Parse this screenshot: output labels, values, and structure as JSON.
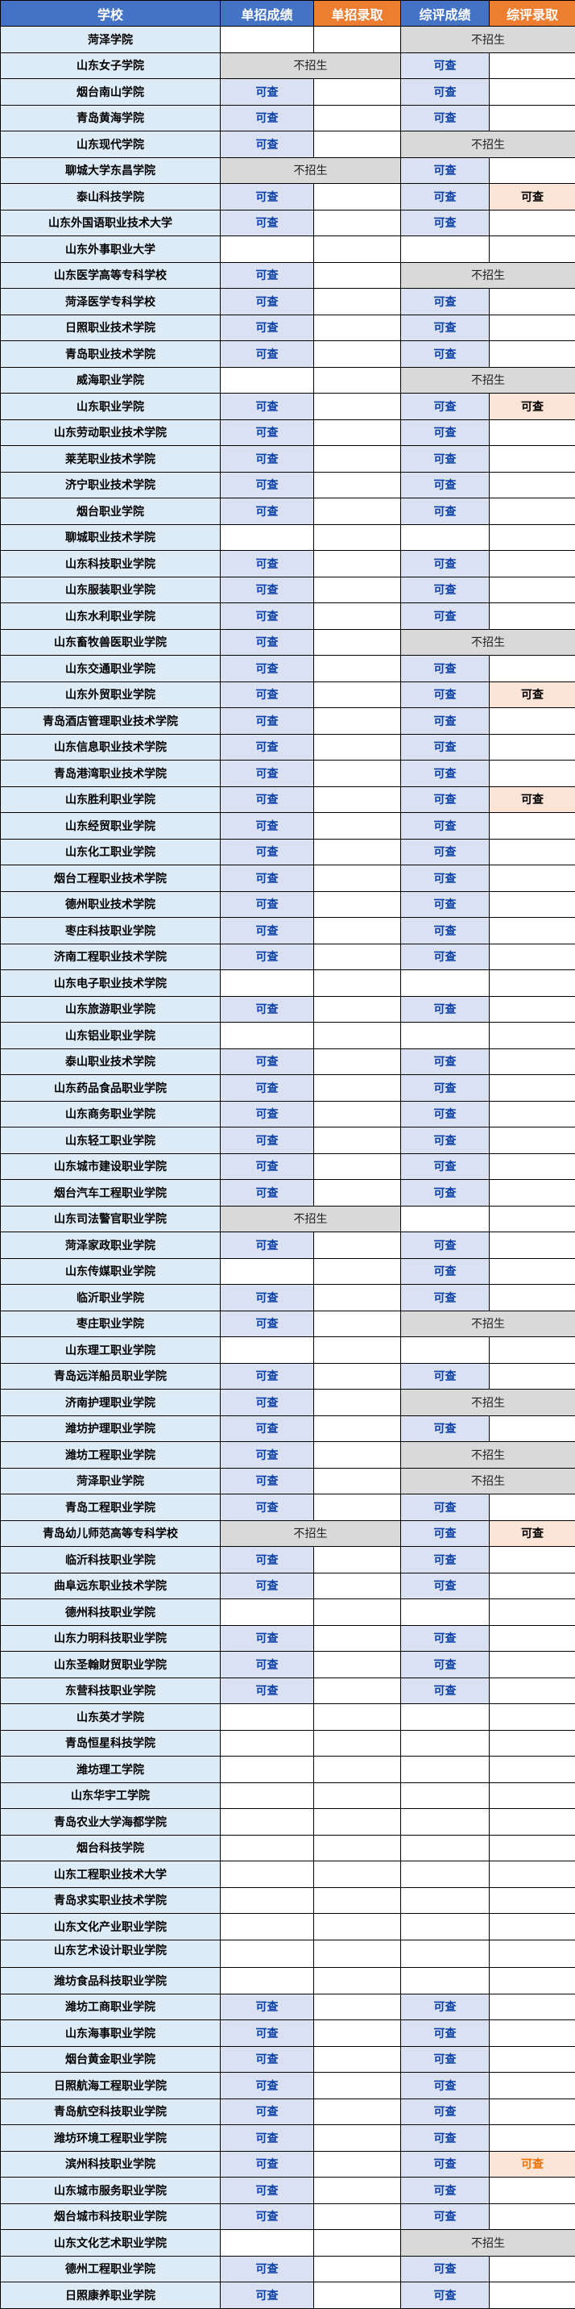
{
  "headers": {
    "school": "学校",
    "dz_score": "单招成绩",
    "dz_admit": "单招录取",
    "zp_score": "综评成绩",
    "zp_admit": "综评录取"
  },
  "labels": {
    "available": "可查",
    "not_enrolling": "不招生"
  },
  "colors": {
    "header_blue": "#4472C4",
    "header_orange": "#ED7D31",
    "name_bg": "#DDEBF7",
    "available_bg": "#D9E1F2",
    "available_text": "#0B3FA8",
    "not_enrolling_bg": "#D9D9D9",
    "admit_bg": "#FCE4D6",
    "admit_orange_text": "#F07000"
  },
  "legend_codes": {
    "Q": "可查",
    "N": "不招生 (merged)",
    "QA": "可查 + 录取可查",
    "QO": "可查 + 录取可查 (orange text)",
    "": "empty"
  },
  "rows": [
    {
      "n": "菏泽学院",
      "d": "",
      "z": "N"
    },
    {
      "n": "山东女子学院",
      "d": "N",
      "z": "Q"
    },
    {
      "n": "烟台南山学院",
      "d": "Q",
      "z": "Q"
    },
    {
      "n": "青岛黄海学院",
      "d": "Q",
      "z": "Q"
    },
    {
      "n": "山东现代学院",
      "d": "Q",
      "z": "N"
    },
    {
      "n": "聊城大学东昌学院",
      "d": "N",
      "z": "Q"
    },
    {
      "n": "泰山科技学院",
      "d": "Q",
      "z": "QA"
    },
    {
      "n": "山东外国语职业技术大学",
      "d": "Q",
      "z": "Q"
    },
    {
      "n": "山东外事职业大学",
      "d": "",
      "z": ""
    },
    {
      "n": "山东医学高等专科学校",
      "d": "Q",
      "z": "N"
    },
    {
      "n": "菏泽医学专科学校",
      "d": "Q",
      "z": "Q"
    },
    {
      "n": "日照职业技术学院",
      "d": "Q",
      "z": "Q"
    },
    {
      "n": "青岛职业技术学院",
      "d": "Q",
      "z": "Q"
    },
    {
      "n": "威海职业学院",
      "d": "",
      "z": "N"
    },
    {
      "n": "山东职业学院",
      "d": "Q",
      "z": "QA"
    },
    {
      "n": "山东劳动职业技术学院",
      "d": "Q",
      "z": "Q"
    },
    {
      "n": "莱芜职业技术学院",
      "d": "Q",
      "z": "Q"
    },
    {
      "n": "济宁职业技术学院",
      "d": "Q",
      "z": "Q"
    },
    {
      "n": "烟台职业学院",
      "d": "Q",
      "z": "Q"
    },
    {
      "n": "聊城职业技术学院",
      "d": "",
      "z": ""
    },
    {
      "n": "山东科技职业学院",
      "d": "Q",
      "z": "Q"
    },
    {
      "n": "山东服装职业学院",
      "d": "Q",
      "z": "Q"
    },
    {
      "n": "山东水利职业学院",
      "d": "Q",
      "z": "Q"
    },
    {
      "n": "山东畜牧兽医职业学院",
      "d": "Q",
      "z": "N"
    },
    {
      "n": "山东交通职业学院",
      "d": "Q",
      "z": "Q"
    },
    {
      "n": "山东外贸职业学院",
      "d": "Q",
      "z": "QA"
    },
    {
      "n": "青岛酒店管理职业技术学院",
      "d": "Q",
      "z": "Q"
    },
    {
      "n": "山东信息职业技术学院",
      "d": "Q",
      "z": "Q"
    },
    {
      "n": "青岛港湾职业技术学院",
      "d": "Q",
      "z": "Q"
    },
    {
      "n": "山东胜利职业学院",
      "d": "Q",
      "z": "QA"
    },
    {
      "n": "山东经贸职业学院",
      "d": "Q",
      "z": "Q"
    },
    {
      "n": "山东化工职业学院",
      "d": "Q",
      "z": "Q"
    },
    {
      "n": "烟台工程职业技术学院",
      "d": "Q",
      "z": "Q"
    },
    {
      "n": "德州职业技术学院",
      "d": "Q",
      "z": "Q"
    },
    {
      "n": "枣庄科技职业学院",
      "d": "Q",
      "z": "Q"
    },
    {
      "n": "济南工程职业技术学院",
      "d": "Q",
      "z": "Q"
    },
    {
      "n": "山东电子职业技术学院",
      "d": "",
      "z": ""
    },
    {
      "n": "山东旅游职业学院",
      "d": "Q",
      "z": "Q"
    },
    {
      "n": "山东铝业职业学院",
      "d": "",
      "z": ""
    },
    {
      "n": "泰山职业技术学院",
      "d": "Q",
      "z": "Q"
    },
    {
      "n": "山东药品食品职业学院",
      "d": "Q",
      "z": "Q"
    },
    {
      "n": "山东商务职业学院",
      "d": "Q",
      "z": "Q"
    },
    {
      "n": "山东轻工职业学院",
      "d": "Q",
      "z": "Q"
    },
    {
      "n": "山东城市建设职业学院",
      "d": "Q",
      "z": "Q"
    },
    {
      "n": "烟台汽车工程职业学院",
      "d": "Q",
      "z": "Q"
    },
    {
      "n": "山东司法警官职业学院",
      "d": "N",
      "z": ""
    },
    {
      "n": "菏泽家政职业学院",
      "d": "Q",
      "z": "Q"
    },
    {
      "n": "山东传媒职业学院",
      "d": "",
      "z": "Q"
    },
    {
      "n": "临沂职业学院",
      "d": "Q",
      "z": "Q"
    },
    {
      "n": "枣庄职业学院",
      "d": "Q",
      "z": "N"
    },
    {
      "n": "山东理工职业学院",
      "d": "",
      "z": ""
    },
    {
      "n": "青岛远洋船员职业学院",
      "d": "Q",
      "z": "Q"
    },
    {
      "n": "济南护理职业学院",
      "d": "Q",
      "z": "N"
    },
    {
      "n": "潍坊护理职业学院",
      "d": "Q",
      "z": "Q"
    },
    {
      "n": "潍坊工程职业学院",
      "d": "Q",
      "z": "N"
    },
    {
      "n": "菏泽职业学院",
      "d": "Q",
      "z": "N"
    },
    {
      "n": "青岛工程职业学院",
      "d": "Q",
      "z": "Q"
    },
    {
      "n": "青岛幼儿师范高等专科学校",
      "d": "N",
      "z": "QA"
    },
    {
      "n": "临沂科技职业学院",
      "d": "Q",
      "z": "Q"
    },
    {
      "n": "曲阜远东职业技术学院",
      "d": "Q",
      "z": "Q"
    },
    {
      "n": "德州科技职业学院",
      "d": "",
      "z": ""
    },
    {
      "n": "山东力明科技职业学院",
      "d": "Q",
      "z": "Q"
    },
    {
      "n": "山东圣翰财贸职业学院",
      "d": "Q",
      "z": "Q"
    },
    {
      "n": "东营科技职业学院",
      "d": "Q",
      "z": "Q"
    },
    {
      "n": "山东英才学院",
      "d": "",
      "z": ""
    },
    {
      "n": "青岛恒星科技学院",
      "d": "",
      "z": ""
    },
    {
      "n": "潍坊理工学院",
      "d": "",
      "z": ""
    },
    {
      "n": "山东华宇工学院",
      "d": "",
      "z": ""
    },
    {
      "n": "青岛农业大学海都学院",
      "d": "",
      "z": ""
    },
    {
      "n": "烟台科技学院",
      "d": "",
      "z": ""
    },
    {
      "n": "山东工程职业技术大学",
      "d": "",
      "z": ""
    },
    {
      "n": "青岛求实职业技术学院",
      "d": "",
      "z": ""
    },
    {
      "n": "山东文化产业职业学院",
      "d": "",
      "z": ""
    },
    {
      "n": "山东艺术设计职业学院",
      "d": "",
      "z": "",
      "top": true
    },
    {
      "n": "潍坊食品科技职业学院",
      "d": "",
      "z": ""
    },
    {
      "n": "潍坊工商职业学院",
      "d": "Q",
      "z": "Q"
    },
    {
      "n": "山东海事职业学院",
      "d": "Q",
      "z": "Q"
    },
    {
      "n": "烟台黄金职业学院",
      "d": "Q",
      "z": "Q"
    },
    {
      "n": "日照航海工程职业学院",
      "d": "Q",
      "z": "Q"
    },
    {
      "n": "青岛航空科技职业学院",
      "d": "Q",
      "z": "Q"
    },
    {
      "n": "潍坊环境工程职业学院",
      "d": "Q",
      "z": "Q"
    },
    {
      "n": "滨州科技职业学院",
      "d": "Q",
      "z": "QO"
    },
    {
      "n": "山东城市服务职业学院",
      "d": "Q",
      "z": "Q"
    },
    {
      "n": "烟台城市科技职业学院",
      "d": "Q",
      "z": "Q"
    },
    {
      "n": "山东文化艺术职业学院",
      "d": "",
      "z": "N"
    },
    {
      "n": "德州工程职业学院",
      "d": "Q",
      "z": "Q"
    },
    {
      "n": "日照康养职业学院",
      "d": "Q",
      "z": "Q"
    }
  ]
}
